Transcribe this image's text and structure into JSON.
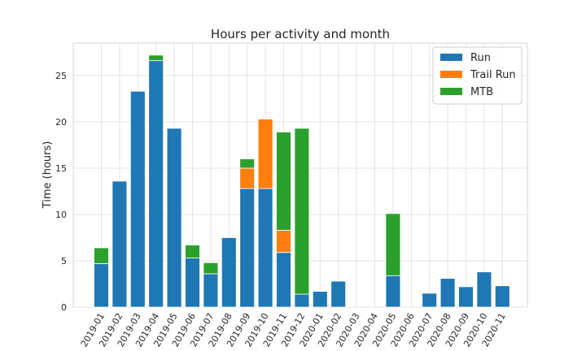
{
  "chart_data": {
    "type": "bar",
    "stacked": true,
    "title": "Hours per activity and month",
    "xlabel": "",
    "ylabel": "Time (hours)",
    "ylim": [
      0,
      28.5
    ],
    "yticks": [
      0,
      5,
      10,
      15,
      20,
      25
    ],
    "grid": true,
    "legend_position": "top-right",
    "categories": [
      "2019-01",
      "2019-02",
      "2019-03",
      "2019-04",
      "2019-05",
      "2019-06",
      "2019-07",
      "2019-08",
      "2019-09",
      "2019-10",
      "2019-11",
      "2019-12",
      "2020-01",
      "2020-02",
      "2020-03",
      "2020-04",
      "2020-05",
      "2020-06",
      "2020-07",
      "2020-08",
      "2020-09",
      "2020-10",
      "2020-11"
    ],
    "series": [
      {
        "name": "Run",
        "color": "#1f77b4",
        "values": [
          4.7,
          13.6,
          23.3,
          26.6,
          19.3,
          5.3,
          3.6,
          7.5,
          12.8,
          12.8,
          5.9,
          1.4,
          1.7,
          2.8,
          0,
          0,
          3.4,
          0,
          1.5,
          3.1,
          2.2,
          3.8,
          2.3
        ]
      },
      {
        "name": "Trail Run",
        "color": "#ff7f0e",
        "values": [
          0,
          0,
          0,
          0,
          0,
          0,
          0,
          0,
          2.2,
          7.5,
          2.4,
          0,
          0,
          0,
          0,
          0,
          0,
          0,
          0,
          0,
          0,
          0,
          0
        ]
      },
      {
        "name": "MTB",
        "color": "#2ca02c",
        "values": [
          1.7,
          0,
          0,
          0.6,
          0,
          1.4,
          1.2,
          0,
          1.0,
          0,
          10.6,
          17.9,
          0,
          0,
          0,
          0,
          6.7,
          0,
          0,
          0,
          0,
          0,
          0
        ]
      }
    ]
  }
}
